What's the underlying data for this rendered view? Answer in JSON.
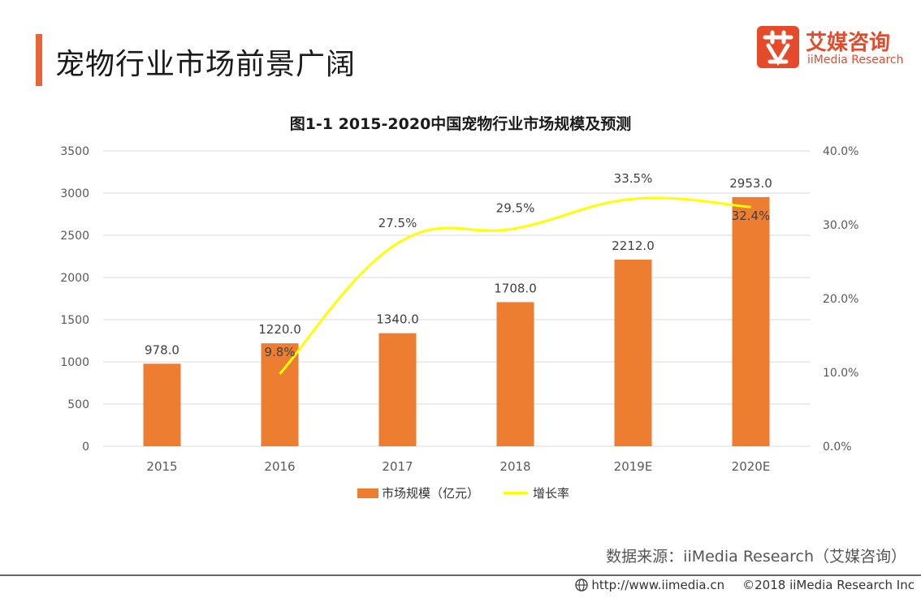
{
  "header": {
    "title": "宠物行业市场前景广阔"
  },
  "logo": {
    "cn": "艾媒咨询",
    "en": "iiMedia Research"
  },
  "chart_data": {
    "type": "bar",
    "title": "图1-1  2015-2020中国宠物行业市场规模及预测",
    "categories": [
      "2015",
      "2016",
      "2017",
      "2018",
      "2019E",
      "2020E"
    ],
    "series": [
      {
        "name": "市场规模（亿元）",
        "type": "bar",
        "axis": "left",
        "values": [
          978.0,
          1220.0,
          1340.0,
          1708.0,
          2212.0,
          2953.0
        ],
        "labels": [
          "978.0",
          "1220.0",
          "1340.0",
          "1708.0",
          "2212.0",
          "2953.0"
        ]
      },
      {
        "name": "增长率",
        "type": "line",
        "axis": "right",
        "values": [
          null,
          9.8,
          27.5,
          29.5,
          33.5,
          32.4
        ],
        "labels": [
          "",
          "9.8%",
          "27.5%",
          "29.5%",
          "33.5%",
          "32.4%"
        ]
      }
    ],
    "left_axis": {
      "min": 0,
      "max": 3500,
      "ticks": [
        "0",
        "500",
        "1000",
        "1500",
        "2000",
        "2500",
        "3000",
        "3500"
      ]
    },
    "right_axis": {
      "min": 0,
      "max": 40,
      "ticks": [
        "0.0%",
        "10.0%",
        "20.0%",
        "30.0%",
        "40.0%"
      ]
    },
    "grid": true,
    "legend_position": "bottom",
    "colors": {
      "bar": "#ed7d31",
      "line": "#ffff00"
    }
  },
  "source": "数据来源：iiMedia Research（艾媒咨询）",
  "footer": {
    "url": "http://www.iimedia.cn",
    "copyright": "©2018  iiMedia Research  Inc"
  }
}
